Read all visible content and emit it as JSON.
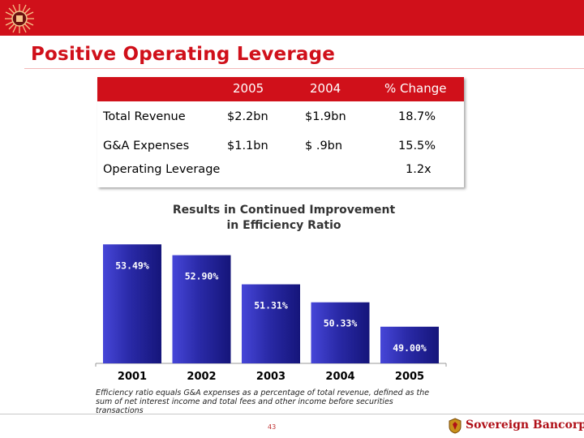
{
  "page": {
    "title": "Positive Operating Leverage",
    "page_number": "43",
    "footnote": "Efficiency ratio equals G&A expenses as a percentage of total revenue, defined as the sum of net interest income and total fees and other income before securities transactions",
    "brand": "Sovereign Bancorp",
    "accent_color": "#d0101a"
  },
  "table": {
    "headers": [
      "",
      "2005",
      "2004",
      "% Change"
    ],
    "rows": [
      {
        "label": "Total Revenue",
        "v2005": "$2.2bn",
        "v2004": "$1.9bn",
        "change": "18.7%"
      },
      {
        "label": "G&A Expenses",
        "v2005": "$1.1bn",
        "v2004": "$ .9bn",
        "change": "15.5%"
      },
      {
        "label": "Operating Leverage",
        "v2005": "",
        "v2004": "",
        "change": "1.2x"
      }
    ]
  },
  "chart_data": {
    "type": "bar",
    "title": "Results in Continued Improvement in Efficiency Ratio",
    "title_lines": [
      "Results in Continued Improvement",
      "in Efficiency Ratio"
    ],
    "categories": [
      "2001",
      "2002",
      "2003",
      "2004",
      "2005"
    ],
    "values": [
      53.49,
      52.9,
      51.31,
      50.33,
      49.0
    ],
    "value_labels": [
      "53.49%",
      "52.90%",
      "51.31%",
      "50.33%",
      "49.00%"
    ],
    "ylim": [
      47,
      53.9
    ],
    "xlabel": "",
    "ylabel": "",
    "grid": false,
    "bar_color": "#2a2aa8"
  }
}
